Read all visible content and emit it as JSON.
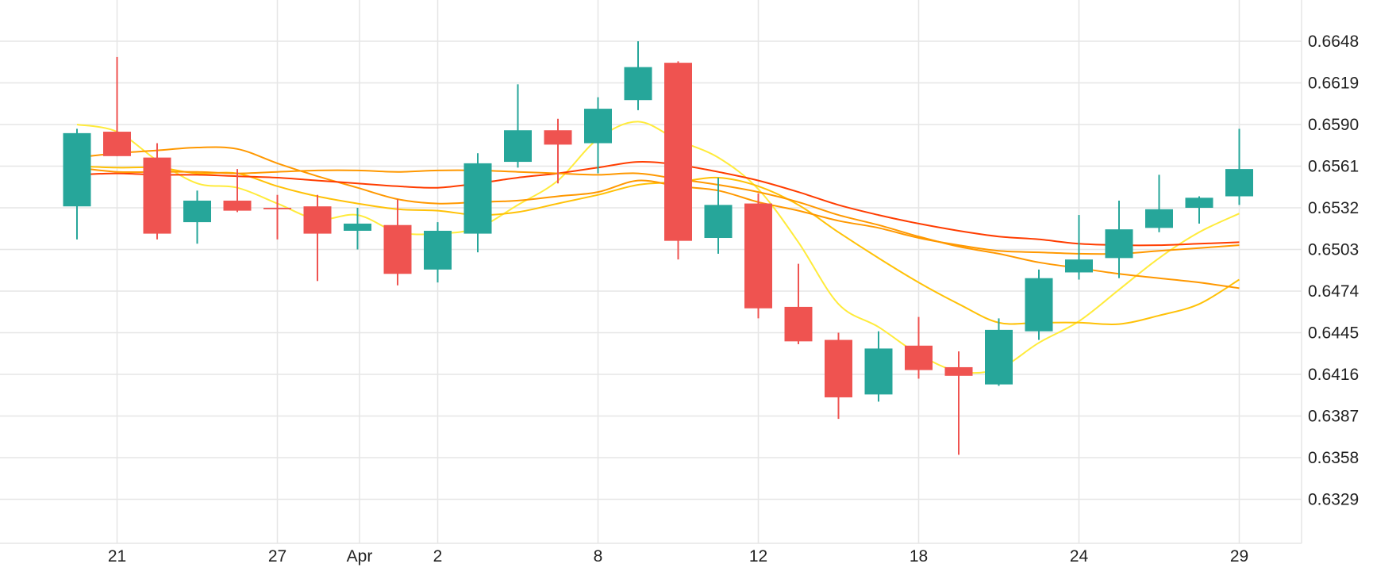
{
  "chart_data": {
    "type": "candlestick",
    "title": "",
    "xlabel": "",
    "ylabel": "",
    "ylim": [
      0.63,
      0.6677
    ],
    "y_ticks": [
      "0.6648",
      "0.6619",
      "0.6590",
      "0.6561",
      "0.6532",
      "0.6503",
      "0.6474",
      "0.6445",
      "0.6416",
      "0.6387",
      "0.6358",
      "0.6329"
    ],
    "x_ticks": [
      {
        "label": "21",
        "idx": 1
      },
      {
        "label": "27",
        "idx": 5
      },
      {
        "label": "Apr",
        "idx": 8
      },
      {
        "label": "2",
        "idx": 9
      },
      {
        "label": "8",
        "idx": 13
      },
      {
        "label": "12",
        "idx": 17
      },
      {
        "label": "18",
        "idx": 21
      },
      {
        "label": "24",
        "idx": 25
      },
      {
        "label": "29",
        "idx": 29
      }
    ],
    "colors": {
      "up": "#26a69a",
      "down": "#ef5350",
      "grid": "#e6e6e6",
      "ma_yellow": "#ffeb3b",
      "ma_gold": "#ffc107",
      "ma_orange": "#ff9800",
      "ma_red": "#ff3d00"
    },
    "candles": [
      {
        "open": 0.6533,
        "high": 0.6587,
        "low": 0.651,
        "close": 0.6584
      },
      {
        "open": 0.6585,
        "high": 0.6637,
        "low": 0.6568,
        "close": 0.6568
      },
      {
        "open": 0.6567,
        "high": 0.6577,
        "low": 0.651,
        "close": 0.6514
      },
      {
        "open": 0.6522,
        "high": 0.6544,
        "low": 0.6507,
        "close": 0.6537
      },
      {
        "open": 0.6537,
        "high": 0.6559,
        "low": 0.6529,
        "close": 0.653
      },
      {
        "open": 0.6532,
        "high": 0.6541,
        "low": 0.651,
        "close": 0.6531
      },
      {
        "open": 0.6533,
        "high": 0.6541,
        "low": 0.6481,
        "close": 0.6514
      },
      {
        "open": 0.6516,
        "high": 0.6532,
        "low": 0.6503,
        "close": 0.6521
      },
      {
        "open": 0.652,
        "high": 0.6538,
        "low": 0.6478,
        "close": 0.6486
      },
      {
        "open": 0.6489,
        "high": 0.6522,
        "low": 0.648,
        "close": 0.6516
      },
      {
        "open": 0.6514,
        "high": 0.657,
        "low": 0.6501,
        "close": 0.6563
      },
      {
        "open": 0.6564,
        "high": 0.6618,
        "low": 0.656,
        "close": 0.6586
      },
      {
        "open": 0.6586,
        "high": 0.6594,
        "low": 0.6549,
        "close": 0.6576
      },
      {
        "open": 0.6577,
        "high": 0.6609,
        "low": 0.6556,
        "close": 0.6601
      },
      {
        "open": 0.6607,
        "high": 0.6648,
        "low": 0.66,
        "close": 0.663
      },
      {
        "open": 0.6633,
        "high": 0.6634,
        "low": 0.6496,
        "close": 0.6509
      },
      {
        "open": 0.6511,
        "high": 0.6553,
        "low": 0.65,
        "close": 0.6534
      },
      {
        "open": 0.6535,
        "high": 0.6542,
        "low": 0.6455,
        "close": 0.6462
      },
      {
        "open": 0.6463,
        "high": 0.6493,
        "low": 0.6437,
        "close": 0.6439
      },
      {
        "open": 0.644,
        "high": 0.6445,
        "low": 0.6385,
        "close": 0.64
      },
      {
        "open": 0.6402,
        "high": 0.6446,
        "low": 0.6397,
        "close": 0.6434
      },
      {
        "open": 0.6436,
        "high": 0.6456,
        "low": 0.6413,
        "close": 0.6419
      },
      {
        "open": 0.6421,
        "high": 0.6432,
        "low": 0.636,
        "close": 0.6415
      },
      {
        "open": 0.6409,
        "high": 0.6455,
        "low": 0.6408,
        "close": 0.6447
      },
      {
        "open": 0.6446,
        "high": 0.6489,
        "low": 0.644,
        "close": 0.6483
      },
      {
        "open": 0.6487,
        "high": 0.6527,
        "low": 0.6482,
        "close": 0.6496
      },
      {
        "open": 0.6497,
        "high": 0.6537,
        "low": 0.6483,
        "close": 0.6517
      },
      {
        "open": 0.6518,
        "high": 0.6555,
        "low": 0.6515,
        "close": 0.6531
      },
      {
        "open": 0.6532,
        "high": 0.654,
        "low": 0.6521,
        "close": 0.6539
      },
      {
        "open": 0.654,
        "high": 0.6587,
        "low": 0.6534,
        "close": 0.6559
      }
    ],
    "series": [
      {
        "color_key": "ma_yellow",
        "values": [
          0.659,
          0.6585,
          0.6565,
          0.6549,
          0.6546,
          0.6535,
          0.6524,
          0.6527,
          0.6515,
          0.6514,
          0.6518,
          0.6534,
          0.6551,
          0.658,
          0.6592,
          0.6579,
          0.6567,
          0.6545,
          0.6508,
          0.6465,
          0.6449,
          0.643,
          0.6418,
          0.642,
          0.6438,
          0.6453,
          0.6475,
          0.6497,
          0.6515,
          0.6528
        ]
      },
      {
        "color_key": "ma_gold",
        "values": [
          0.6561,
          0.656,
          0.656,
          0.6556,
          0.6556,
          0.6547,
          0.654,
          0.6535,
          0.6531,
          0.653,
          0.6527,
          0.6529,
          0.6535,
          0.6541,
          0.6548,
          0.655,
          0.6553,
          0.6547,
          0.6534,
          0.6515,
          0.6497,
          0.648,
          0.6465,
          0.6452,
          0.6452,
          0.6452,
          0.6451,
          0.6457,
          0.6465,
          0.6482
        ]
      },
      {
        "color_key": "ma_orange",
        "values": [
          0.6567,
          0.657,
          0.6572,
          0.6574,
          0.6573,
          0.6563,
          0.6554,
          0.6546,
          0.6538,
          0.6535,
          0.6536,
          0.6537,
          0.654,
          0.6543,
          0.6551,
          0.6547,
          0.6544,
          0.6536,
          0.653,
          0.6523,
          0.6518,
          0.6511,
          0.6506,
          0.6502,
          0.6501,
          0.65,
          0.65,
          0.6502,
          0.6504,
          0.6506
        ]
      },
      {
        "color_key": "ma_red",
        "values": [
          0.6555,
          0.6556,
          0.6555,
          0.6555,
          0.6554,
          0.6553,
          0.6551,
          0.6549,
          0.6547,
          0.6546,
          0.6549,
          0.6553,
          0.6556,
          0.656,
          0.6564,
          0.6562,
          0.6557,
          0.6551,
          0.6543,
          0.6534,
          0.6527,
          0.6521,
          0.6516,
          0.6512,
          0.651,
          0.6507,
          0.6506,
          0.6506,
          0.6507,
          0.6508
        ]
      },
      {
        "color_key": "ma_orange",
        "values": [
          0.656,
          0.6557,
          0.6557,
          0.6557,
          0.6556,
          0.6557,
          0.6558,
          0.6558,
          0.6557,
          0.6558,
          0.6558,
          0.6557,
          0.6556,
          0.6555,
          0.6556,
          0.6552,
          0.6548,
          0.6543,
          0.6536,
          0.6527,
          0.652,
          0.6512,
          0.6505,
          0.65,
          0.6494,
          0.649,
          0.6486,
          0.6483,
          0.648,
          0.6476
        ]
      }
    ]
  }
}
